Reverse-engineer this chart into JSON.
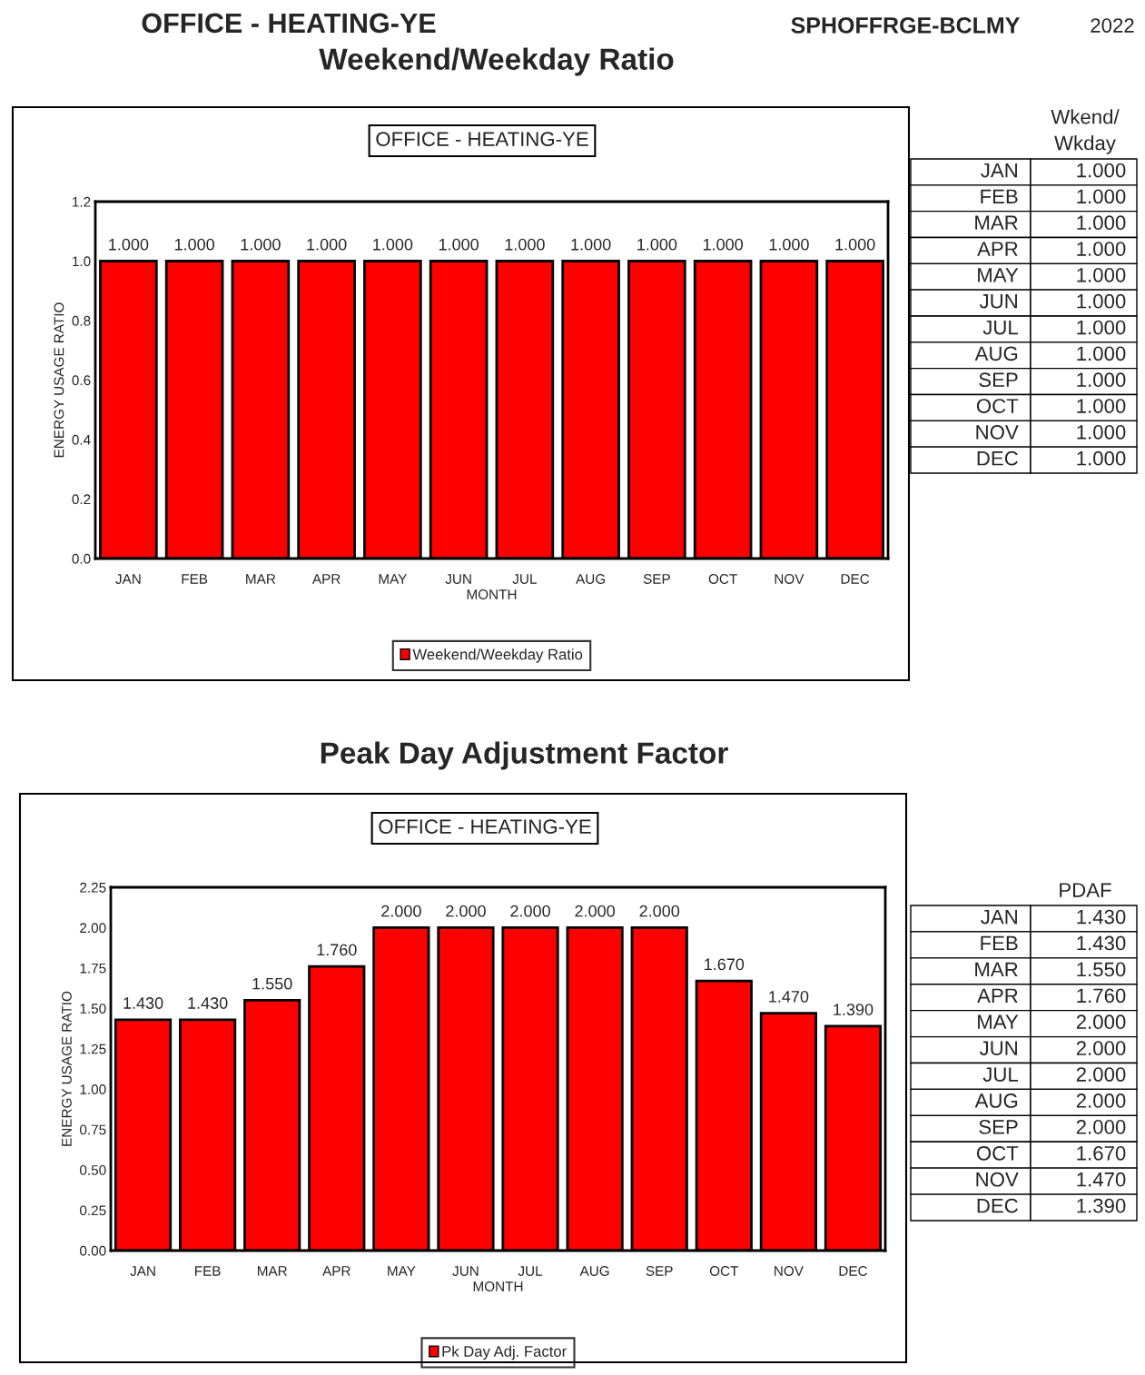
{
  "chart_data": [
    {
      "type": "bar",
      "title": "Weekend/Weekday Ratio",
      "subtitle": "OFFICE - HEATING-YE",
      "xlabel": "MONTH",
      "ylabel": "ENERGY USAGE RATIO",
      "annotations": [
        "OFFICE - HEATING-YE",
        "SPHOFFRGE-BCLMY",
        "2022",
        "Wkend/\nWkday"
      ],
      "categories": [
        "JAN",
        "FEB",
        "MAR",
        "APR",
        "MAY",
        "JUN",
        "JUL",
        "AUG",
        "SEP",
        "OCT",
        "NOV",
        "DEC"
      ],
      "series": [
        {
          "name": "Weekend/Weekday Ratio",
          "color": "#ff0000",
          "values": [
            1.0,
            1.0,
            1.0,
            1.0,
            1.0,
            1.0,
            1.0,
            1.0,
            1.0,
            1.0,
            1.0,
            1.0
          ],
          "value_labels": [
            "1.000",
            "1.000",
            "1.000",
            "1.000",
            "1.000",
            "1.000",
            "1.000",
            "1.000",
            "1.000",
            "1.000",
            "1.000",
            "1.000"
          ]
        }
      ],
      "ylim": [
        0,
        1.2
      ],
      "yticks": [
        {
          "value": 0,
          "label": "0.0"
        },
        {
          "value": 0.2,
          "label": "0.2"
        },
        {
          "value": 0.4,
          "label": "0.4"
        },
        {
          "value": 0.6,
          "label": "0.6"
        },
        {
          "value": 0.8,
          "label": "0.8"
        },
        {
          "value": 1.0,
          "label": "1.0"
        },
        {
          "value": 1.2,
          "label": "1.2"
        }
      ],
      "grid": false,
      "legend": "bottom"
    },
    {
      "type": "bar",
      "title": "Peak Day Adjustment Factor",
      "subtitle": "OFFICE - HEATING-YE",
      "xlabel": "MONTH",
      "ylabel": "ENERGY USAGE RATIO",
      "annotations": [
        "PDAF"
      ],
      "categories": [
        "JAN",
        "FEB",
        "MAR",
        "APR",
        "MAY",
        "JUN",
        "JUL",
        "AUG",
        "SEP",
        "OCT",
        "NOV",
        "DEC"
      ],
      "series": [
        {
          "name": "Pk Day Adj. Factor",
          "color": "#ff0000",
          "values": [
            1.43,
            1.43,
            1.55,
            1.76,
            2.0,
            2.0,
            2.0,
            2.0,
            2.0,
            1.67,
            1.47,
            1.39
          ],
          "value_labels": [
            "1.430",
            "1.430",
            "1.550",
            "1.760",
            "2.000",
            "2.000",
            "2.000",
            "2.000",
            "2.000",
            "1.670",
            "1.470",
            "1.390"
          ]
        }
      ],
      "ylim": [
        0,
        2.25
      ],
      "yticks": [
        {
          "value": 0,
          "label": "0.00"
        },
        {
          "value": 0.25,
          "label": "0.25"
        },
        {
          "value": 0.5,
          "label": "0.50"
        },
        {
          "value": 0.75,
          "label": "0.75"
        },
        {
          "value": 1.0,
          "label": "1.00"
        },
        {
          "value": 1.25,
          "label": "1.25"
        },
        {
          "value": 1.5,
          "label": "1.50"
        },
        {
          "value": 1.75,
          "label": "1.75"
        },
        {
          "value": 2.0,
          "label": "2.00"
        },
        {
          "value": 2.25,
          "label": "2.25"
        }
      ],
      "grid": false,
      "legend": "bottom"
    }
  ]
}
